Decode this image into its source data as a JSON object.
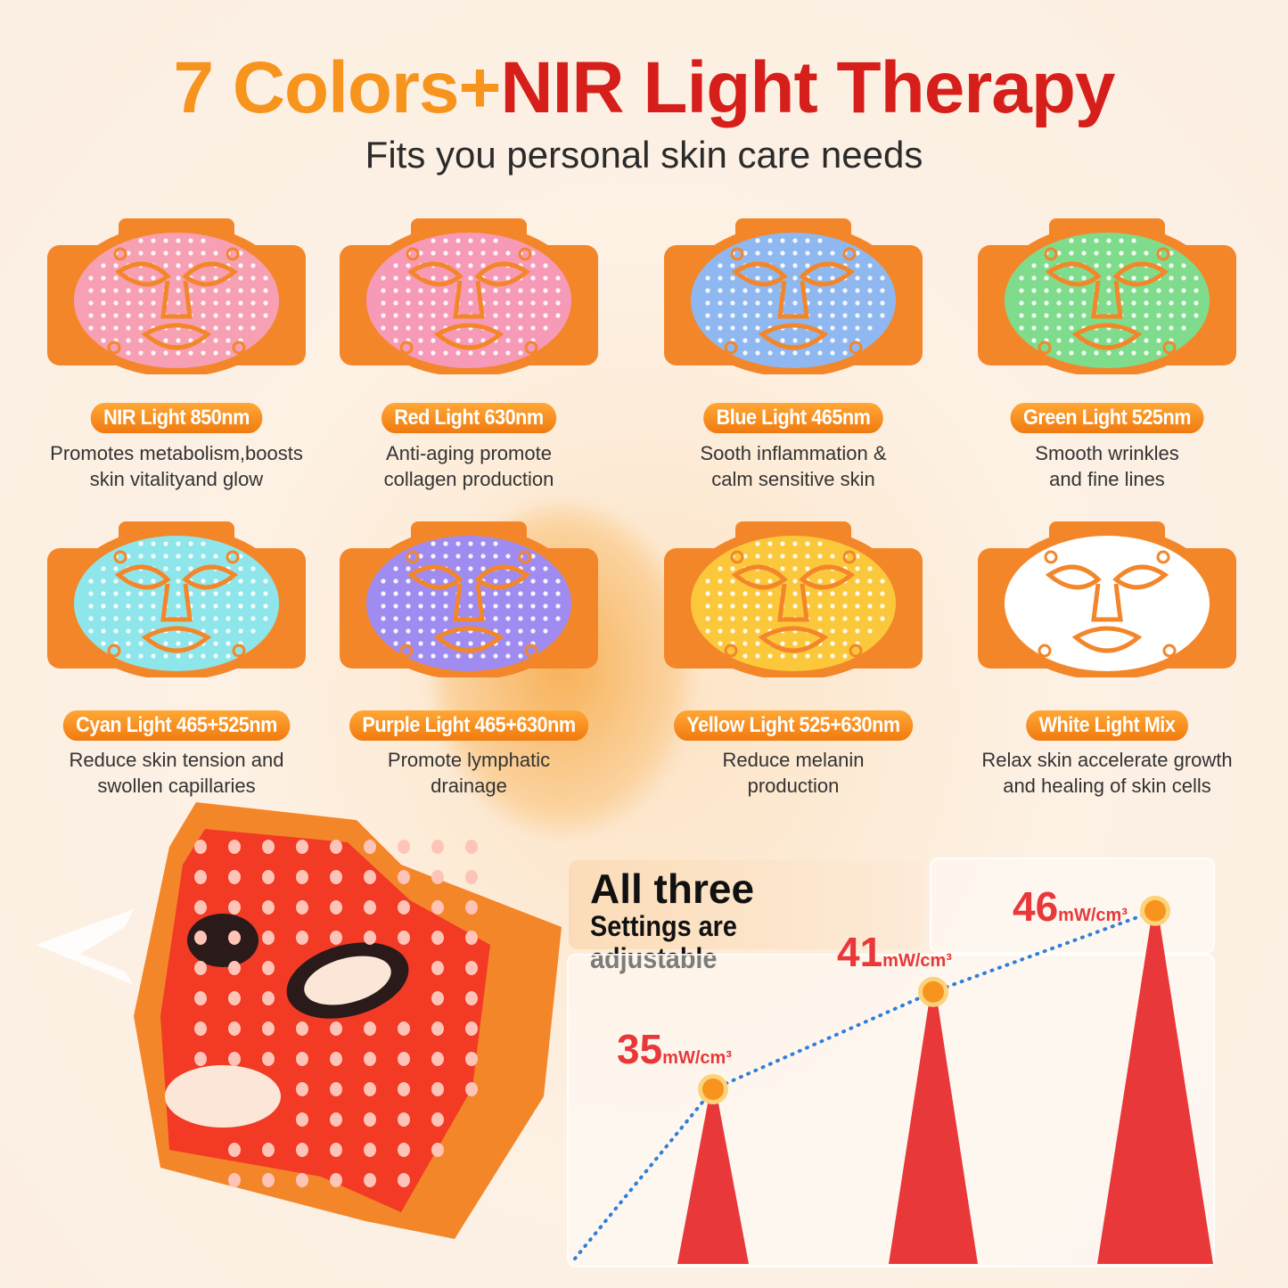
{
  "header": {
    "title_part1": "7 Colors+",
    "title_part2": "NIR Light Therapy",
    "subtitle": "Fits you personal skin care needs"
  },
  "lights": [
    {
      "label": "NIR Light 850nm",
      "desc1": "Promotes metabolism,boosts",
      "desc2": "skin vitalityand glow",
      "color": "#f7a0b4"
    },
    {
      "label": "Red Light 630nm",
      "desc1": "Anti-aging promote",
      "desc2": "collagen production",
      "color": "#f79ab8"
    },
    {
      "label": "Blue Light 465nm",
      "desc1": "Sooth inflammation &",
      "desc2": "calm sensitive skin",
      "color": "#8fb8f0"
    },
    {
      "label": "Green Light 525nm",
      "desc1": "Smooth wrinkles",
      "desc2": "and fine lines",
      "color": "#7fdc8c"
    },
    {
      "label": "Cyan Light 465+525nm",
      "desc1": "Reduce skin tension and",
      "desc2": "swollen capillaries",
      "color": "#8ee6ea"
    },
    {
      "label": "Purple Light 465+630nm",
      "desc1": "Promote lymphatic",
      "desc2": "drainage",
      "color": "#a08cf0"
    },
    {
      "label": "Yellow Light 525+630nm",
      "desc1": "Reduce melanin",
      "desc2": "production",
      "color": "#fbc83c"
    },
    {
      "label": "White Light Mix",
      "desc1": "Relax skin accelerate growth",
      "desc2": "and healing of skin cells",
      "color": "#ffffff"
    }
  ],
  "colors": {
    "frame": "#f4862a",
    "accent_orange": "#f7941d",
    "accent_red": "#d61f1a",
    "value_red": "#e8383a",
    "line_blue": "#2f7fd8",
    "led_red": "#f23a24"
  },
  "adjustable": {
    "line1": "All three",
    "line2": "Settings are adjustable"
  },
  "chart_data": {
    "type": "line",
    "unit": "mW/cm³",
    "values": [
      35,
      41,
      46
    ],
    "labels": [
      {
        "n": "35",
        "u": "mW/cm³"
      },
      {
        "n": "41",
        "u": "mW/cm³"
      },
      {
        "n": "46",
        "u": "mW/cm³"
      }
    ],
    "line_style": "dotted",
    "grid": true
  }
}
